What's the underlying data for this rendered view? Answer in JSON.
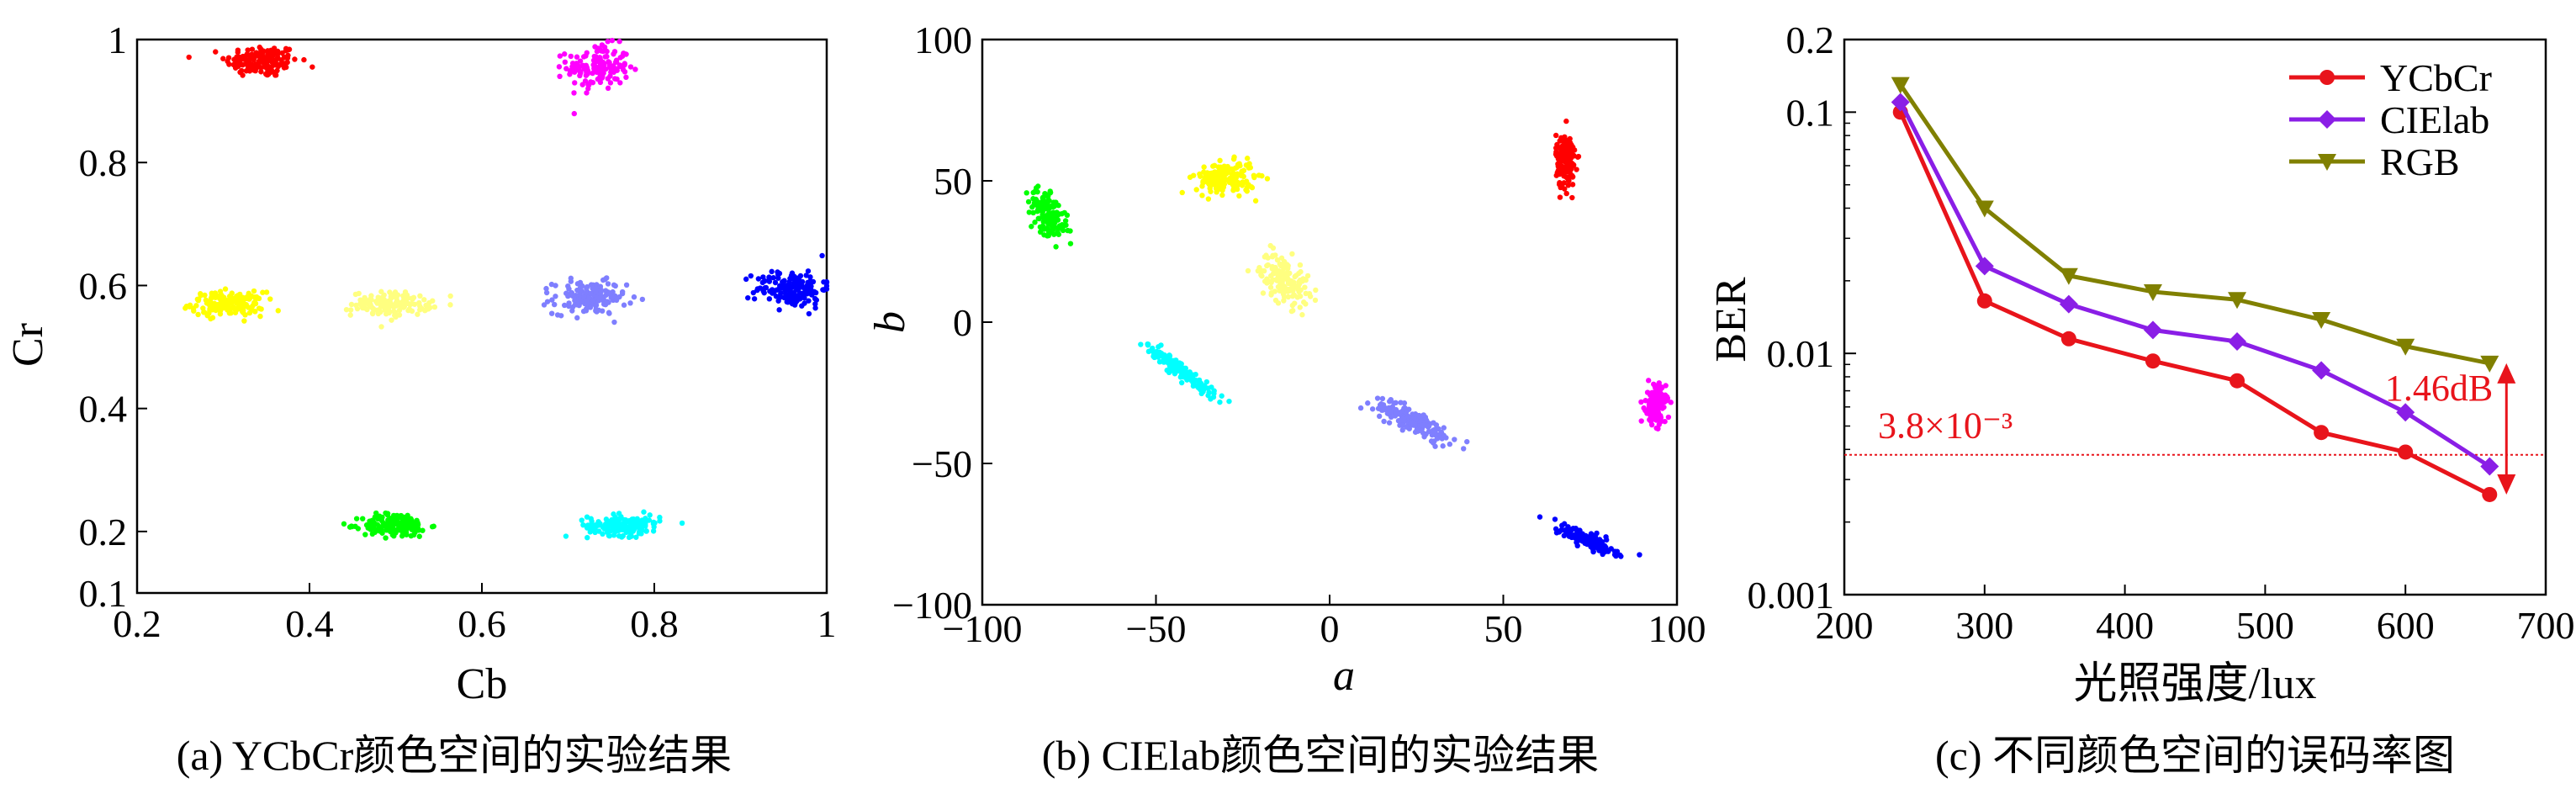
{
  "panels": [
    {
      "id": "a",
      "chart_data": {
        "type": "scatter",
        "xlabel": "Cb",
        "ylabel": "Cr",
        "xlim": [
          0.2,
          1.0
        ],
        "ylim": [
          0.1,
          1.0
        ],
        "xticks": [
          "0.2",
          "0.4",
          "0.6",
          "0.8",
          "1"
        ],
        "yticks": [
          "0.1",
          "0.2",
          "0.4",
          "0.6",
          "0.8",
          "1"
        ],
        "caption": "(a) YCbCr颜色空间的实验结果",
        "clusters": [
          {
            "color": "#ff0000",
            "center": [
              0.345,
              0.965
            ],
            "spread": [
              0.035,
              0.022
            ],
            "n": 160
          },
          {
            "color": "#ff00ff",
            "center": [
              0.735,
              0.955
            ],
            "spread": [
              0.03,
              0.03
            ],
            "n": 150
          },
          {
            "color": "#ffff00",
            "center": [
              0.305,
              0.57
            ],
            "spread": [
              0.035,
              0.016
            ],
            "n": 170
          },
          {
            "color": "#ffff80",
            "center": [
              0.495,
              0.57
            ],
            "spread": [
              0.038,
              0.016
            ],
            "n": 150
          },
          {
            "color": "#7f7fff",
            "center": [
              0.725,
              0.58
            ],
            "spread": [
              0.035,
              0.022
            ],
            "n": 160
          },
          {
            "color": "#0000ff",
            "center": [
              0.96,
              0.595
            ],
            "spread": [
              0.035,
              0.026
            ],
            "n": 160
          },
          {
            "color": "#00ff00",
            "center": [
              0.5,
              0.21
            ],
            "spread": [
              0.032,
              0.016
            ],
            "n": 170
          },
          {
            "color": "#00ffff",
            "center": [
              0.765,
              0.21
            ],
            "spread": [
              0.035,
              0.014
            ],
            "n": 170
          }
        ]
      }
    },
    {
      "id": "b",
      "chart_data": {
        "type": "scatter",
        "xlabel": "a",
        "ylabel": "b",
        "xlim": [
          -100,
          100
        ],
        "ylim": [
          -100,
          100
        ],
        "xticks": [
          "−100",
          "−50",
          "0",
          "50",
          "100"
        ],
        "yticks": [
          "−100",
          "−50",
          "0",
          "50",
          "100"
        ],
        "caption": "(b) CIElab颜色空间的实验结果",
        "clusters": [
          {
            "color": "#00ff00",
            "center": [
              -81,
              38
            ],
            "spread": [
              4,
              5
            ],
            "slope": -0.9,
            "n": 160
          },
          {
            "color": "#ffff00",
            "center": [
              -30,
              51
            ],
            "spread": [
              6,
              4
            ],
            "slope": 0,
            "n": 170
          },
          {
            "color": "#ffff80",
            "center": [
              -13,
              15
            ],
            "spread": [
              5,
              6
            ],
            "slope": -0.4,
            "n": 150
          },
          {
            "color": "#ff0000",
            "center": [
              68,
              57
            ],
            "spread": [
              2,
              7
            ],
            "slope": 0,
            "n": 150
          },
          {
            "color": "#00ffff",
            "center": [
              -43,
              -17
            ],
            "spread": [
              7,
              2
            ],
            "slope": -0.9,
            "n": 160
          },
          {
            "color": "#7f7fff",
            "center": [
              24,
              -35
            ],
            "spread": [
              8,
              3
            ],
            "slope": -0.55,
            "n": 170
          },
          {
            "color": "#0000ff",
            "center": [
              74,
              -77
            ],
            "spread": [
              6,
              2
            ],
            "slope": -0.55,
            "n": 160
          },
          {
            "color": "#ff00ff",
            "center": [
              94,
              -29
            ],
            "spread": [
              2,
              5
            ],
            "slope": 0,
            "n": 150
          }
        ]
      }
    },
    {
      "id": "c",
      "chart_data": {
        "type": "line",
        "xlabel": "光照强度/lux",
        "ylabel": "BER",
        "xlim": [
          200,
          700
        ],
        "ylim": [
          0.001,
          0.2
        ],
        "yscale": "log",
        "xticks": [
          "200",
          "300",
          "400",
          "500",
          "600",
          "700"
        ],
        "yticks": [
          "0.001",
          "0.01",
          "0.1",
          "0.2"
        ],
        "caption": "(c) 不同颜色空间的误码率图",
        "x": [
          240,
          300,
          360,
          420,
          480,
          540,
          600,
          660
        ],
        "series": [
          {
            "name": "YCbCr",
            "color": "#e8141b",
            "marker": "circle",
            "values": [
              0.1,
              0.0165,
              0.0115,
              0.0093,
              0.0077,
              0.0047,
              0.0039,
              0.0026
            ]
          },
          {
            "name": "CIElab",
            "color": "#8a1ee6",
            "marker": "diamond",
            "values": [
              0.11,
              0.023,
              0.016,
              0.0125,
              0.0112,
              0.0085,
              0.0057,
              0.0034
            ]
          },
          {
            "name": "RGB",
            "color": "#808000",
            "marker": "triangle-down",
            "values": [
              0.13,
              0.04,
              0.021,
              0.018,
              0.0167,
              0.0138,
              0.0107,
              0.0091
            ]
          }
        ],
        "threshold": {
          "value": 0.0038,
          "label": "3.8×10⁻³",
          "color": "#e8141b"
        },
        "gain_annotation": {
          "label": "1.46dB",
          "color": "#e8141b"
        },
        "legend": "top-right"
      }
    }
  ]
}
